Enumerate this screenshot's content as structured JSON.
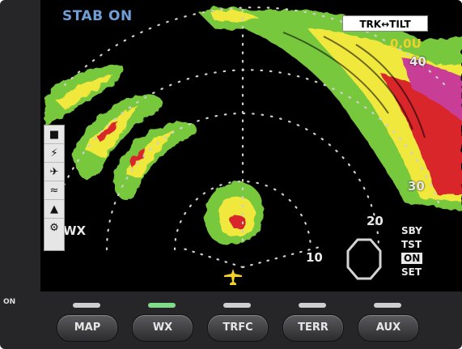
{
  "display": {
    "stab_status": "STAB ON",
    "track_tilt_label": "TRK↔TILT",
    "tilt_value": "0.0U",
    "range_rings": [
      "40",
      "30",
      "20",
      "10"
    ],
    "mode_label": "WX",
    "modes": [
      "SBY",
      "TST",
      "ON",
      "SET"
    ],
    "active_mode": "ON",
    "colors": {
      "green": "#78c83c",
      "yellow": "#f0e83c",
      "red": "#d8282c",
      "magenta": "#c83c96",
      "label": "#e8e8e8",
      "stab": "#6f9fd6",
      "tilt": "#f2d02a"
    }
  },
  "sidebar_icons": [
    "stop-icon",
    "lightning-icon",
    "aircraft-icon",
    "turbulence-icon",
    "terrain-icon",
    "settings-icon"
  ],
  "power_label": "ON",
  "softkeys": [
    {
      "label": "MAP",
      "active": false
    },
    {
      "label": "WX",
      "active": true
    },
    {
      "label": "TRFC",
      "active": false
    },
    {
      "label": "TERR",
      "active": false
    },
    {
      "label": "AUX",
      "active": false
    }
  ]
}
